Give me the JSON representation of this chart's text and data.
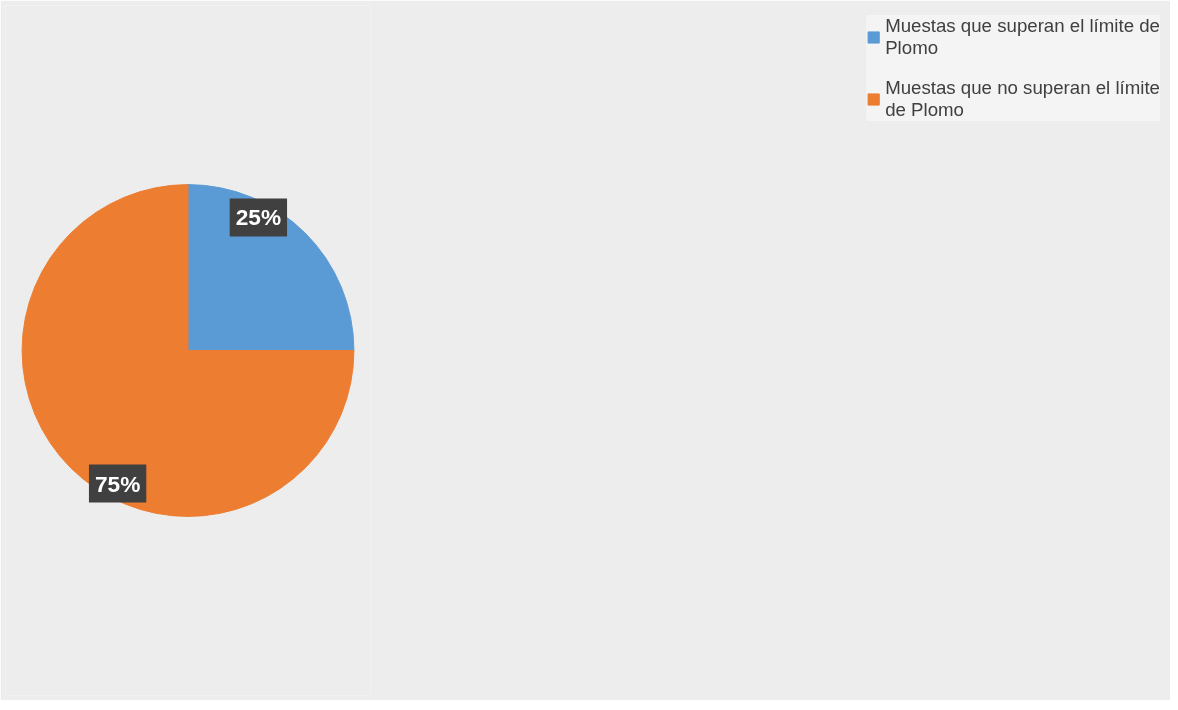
{
  "chart_data": {
    "type": "pie",
    "categories": [
      "Muestas que superan el límite de Plomo",
      "Muestas que no superan el límite de Plomo"
    ],
    "values": [
      25,
      75
    ],
    "value_labels": [
      "25%",
      "75%"
    ],
    "colors": [
      "#5b9bd5",
      "#ed7d31"
    ],
    "legend": "right"
  }
}
